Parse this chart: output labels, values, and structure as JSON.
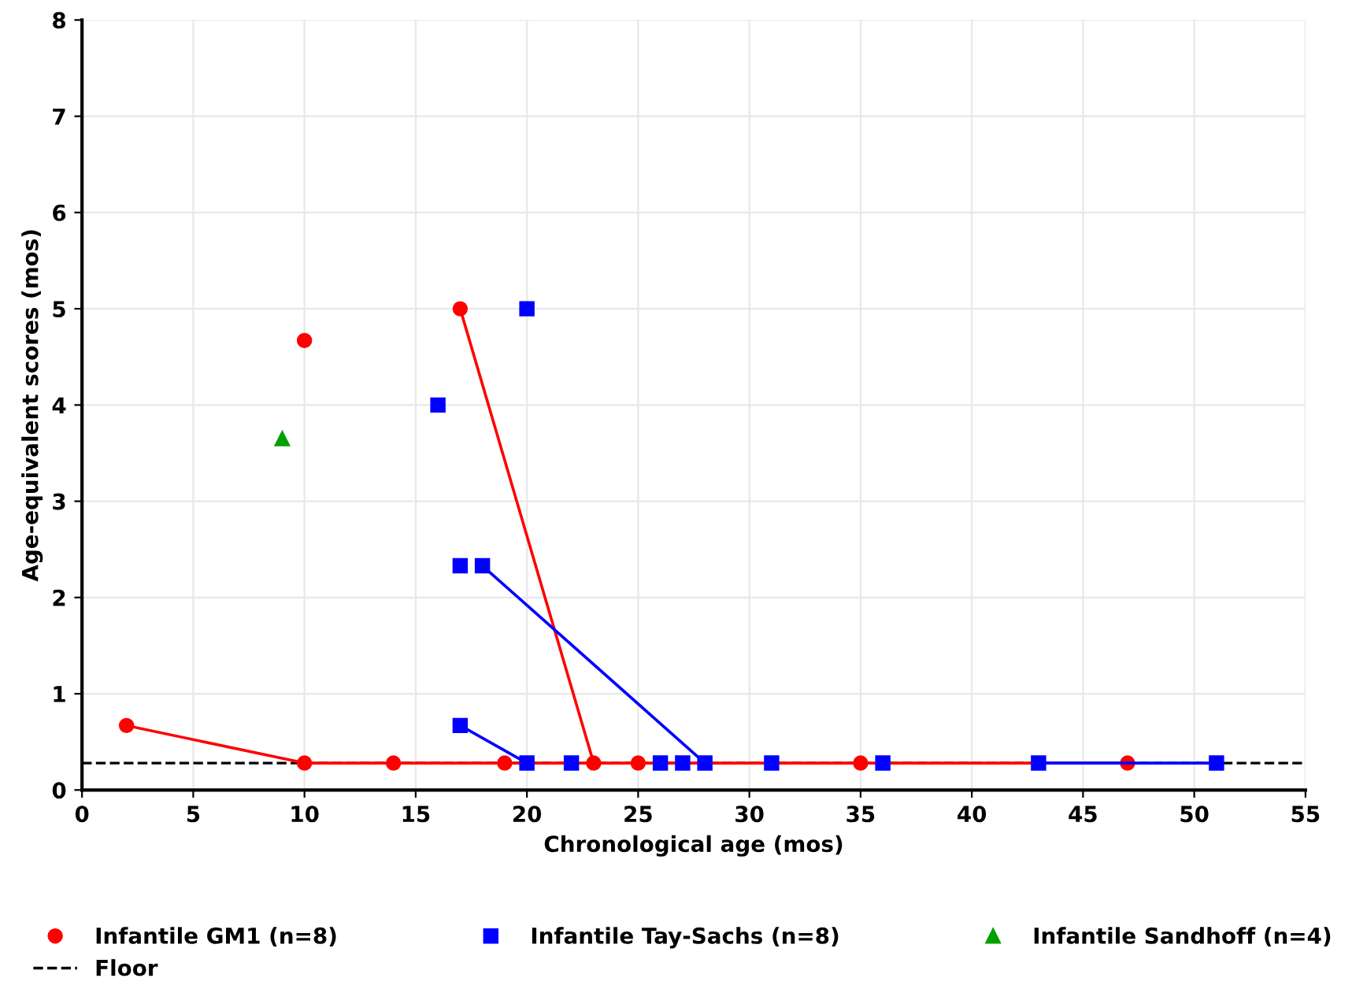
{
  "chart_data": {
    "type": "line",
    "xlabel": "Chronological age (mos)",
    "ylabel": "Age-equivalent scores (mos)",
    "xlim": [
      0,
      55
    ],
    "xticks": [
      0,
      5,
      10,
      15,
      20,
      25,
      30,
      35,
      40,
      45,
      50,
      55
    ],
    "ylim": [
      0,
      8
    ],
    "yticks": [
      0,
      1,
      2,
      3,
      4,
      5,
      6,
      7,
      8
    ],
    "grid": true,
    "legend": "bottom",
    "series": [
      {
        "name": "Infantile GM1 (n=8)",
        "color": "#ff0000",
        "marker": "circle",
        "x": [
          2,
          10,
          14,
          19,
          25,
          35,
          47,
          null,
          17,
          23,
          null,
          10
        ],
        "values": [
          0.67,
          0.28,
          0.28,
          0.28,
          0.28,
          0.28,
          0.28,
          null,
          5,
          0.28,
          null,
          4.67
        ]
      },
      {
        "name": "Infantile Tay-Sachs (n=8)",
        "color": "#0000ff",
        "marker": "square",
        "x": [
          17,
          20,
          null,
          18,
          28,
          null,
          43,
          51,
          null,
          16,
          null,
          20,
          null,
          17,
          null,
          22,
          null,
          26,
          null,
          27,
          null,
          31,
          null,
          36
        ],
        "values": [
          0.67,
          0.28,
          null,
          2.33,
          0.28,
          null,
          0.28,
          0.28,
          null,
          4,
          null,
          5,
          null,
          2.33,
          null,
          0.28,
          null,
          0.28,
          null,
          0.28,
          null,
          0.28,
          null,
          0.28
        ]
      },
      {
        "name": "Infantile Sandhoff (n=4)",
        "color": "#00a000",
        "marker": "triangle",
        "x": [
          9
        ],
        "values": [
          3.65
        ]
      }
    ],
    "ref_lines": [
      {
        "axis": "y",
        "value": 0.28,
        "label": "Floor",
        "color": "#000000",
        "line_style": "dashed"
      }
    ]
  }
}
